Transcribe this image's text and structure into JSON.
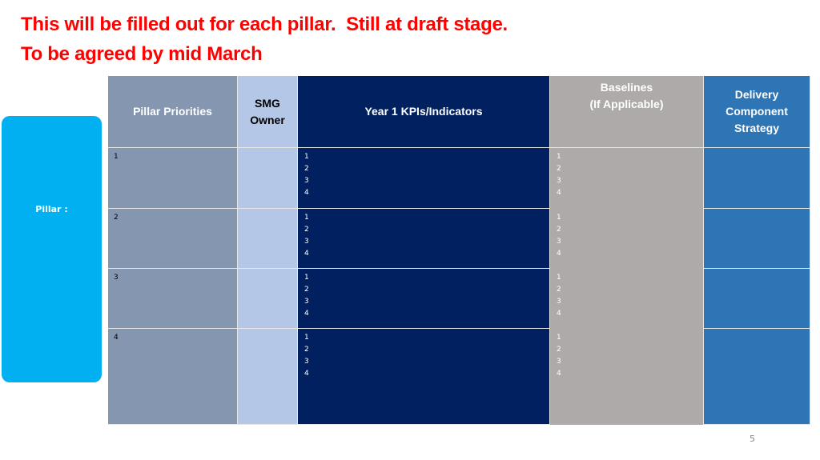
{
  "header": {
    "lines": [
      "This will be filled out for each pillar.  Still at draft stage.",
      "To be agreed by mid March"
    ]
  },
  "pillar_label": "Pillar :",
  "table": {
    "columns": [
      "Pillar Priorities",
      "SMG\nOwner",
      "Year 1   KPIs/Indicators",
      "Baselines\n(If Applicable)",
      "Delivery\nComponent\nStrategy"
    ],
    "rows": [
      {
        "priority": "1",
        "kpis": [
          "1",
          "2",
          "3",
          "4"
        ],
        "baselines": [
          "1",
          "2",
          "3",
          "4"
        ]
      },
      {
        "priority": "2",
        "kpis": [
          "1",
          "2",
          "3",
          "4"
        ],
        "baselines": [
          "1",
          "2",
          "3",
          "4"
        ]
      },
      {
        "priority": "3",
        "kpis": [
          "1",
          "2",
          "3",
          "4"
        ],
        "baselines": [
          "1",
          "2",
          "3",
          "4"
        ]
      },
      {
        "priority": "4",
        "kpis": [
          "1",
          "2",
          "3",
          "4"
        ],
        "baselines": [
          "1",
          "2",
          "3",
          "4"
        ]
      }
    ]
  },
  "page_number": "5"
}
